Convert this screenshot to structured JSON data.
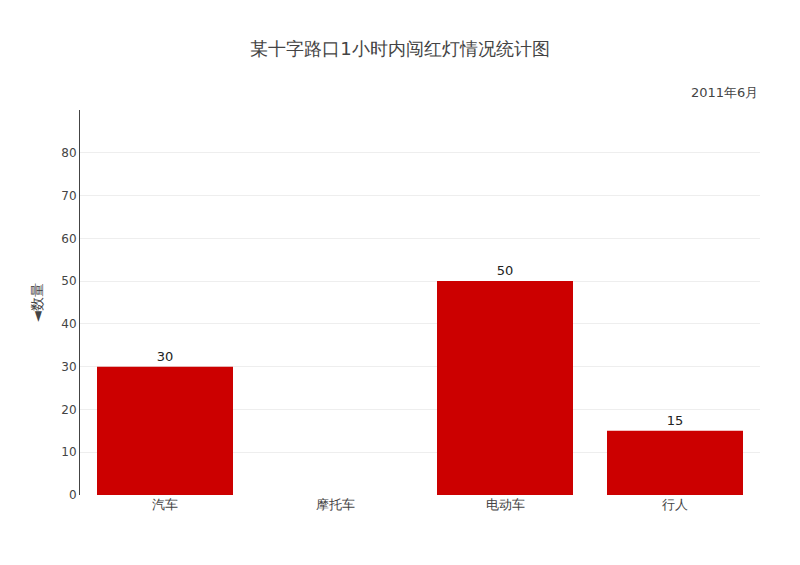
{
  "chart_data": {
    "type": "bar",
    "title": "某十字路口1小时内闯红灯情况统计图",
    "subtitle": "2011年6月",
    "ylabel": "◄数量",
    "categories": [
      "汽车",
      "摩托车",
      "电动车",
      "行人"
    ],
    "values": [
      30,
      null,
      50,
      15
    ],
    "color": "#cc0000",
    "ylim": [
      0,
      90
    ],
    "yticks": [
      0,
      10,
      20,
      30,
      40,
      50,
      60,
      70,
      80
    ],
    "grid": true,
    "data_labels": true
  }
}
